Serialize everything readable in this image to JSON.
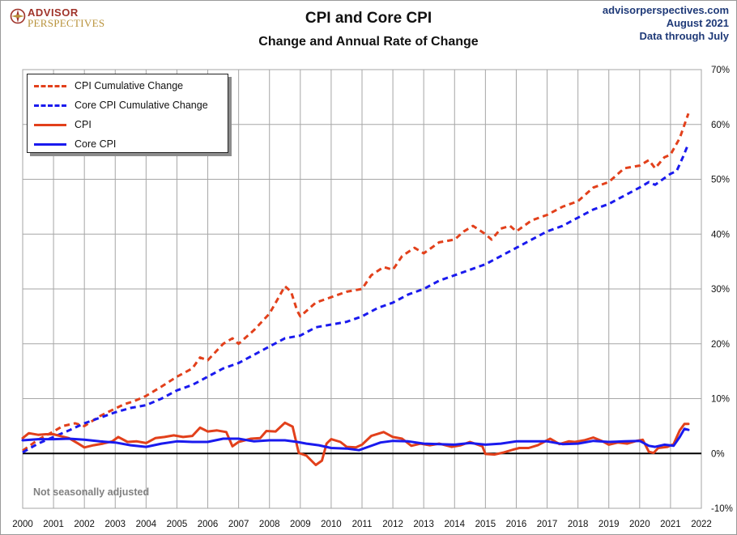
{
  "header": {
    "logo_line1": "ADVISOR",
    "logo_line2": "PERSPECTIVES",
    "title": "CPI and Core CPI",
    "subtitle": "Change and Annual Rate of Change",
    "source_site": "advisorperspectives.com",
    "source_date": "August  2021",
    "source_range": "Data through July"
  },
  "note": "Not seasonally adjusted",
  "colors": {
    "cpi": "#e2401b",
    "core": "#1a1aee",
    "zero_line": "#000000",
    "grid": "#a6a6a6",
    "logo_red": "#a0342b",
    "logo_gold": "#b8923a",
    "source_text": "#1f3a78"
  },
  "chart_data": {
    "type": "line",
    "xlim": [
      2000,
      2022
    ],
    "ylim": [
      -10,
      70
    ],
    "x_ticks": [
      "2000",
      "2001",
      "2002",
      "2003",
      "2004",
      "2005",
      "2006",
      "2007",
      "2008",
      "2009",
      "2010",
      "2011",
      "2012",
      "2013",
      "2014",
      "2015",
      "2016",
      "2017",
      "2018",
      "2019",
      "2020",
      "2021",
      "2022"
    ],
    "y_ticks": [
      "-10%",
      "0%",
      "10%",
      "20%",
      "30%",
      "40%",
      "50%",
      "60%",
      "70%"
    ],
    "grid": true,
    "legend_position": "top-left",
    "series": [
      {
        "name": "CPI Cumulative Change",
        "style": "dashed",
        "color": "#e2401b",
        "points": [
          [
            2000.0,
            0.5
          ],
          [
            2000.5,
            2.5
          ],
          [
            2001.0,
            4.0
          ],
          [
            2001.3,
            5.0
          ],
          [
            2001.7,
            5.5
          ],
          [
            2002.0,
            5.0
          ],
          [
            2002.5,
            6.8
          ],
          [
            2003.0,
            8.2
          ],
          [
            2003.3,
            9.0
          ],
          [
            2003.6,
            9.5
          ],
          [
            2004.0,
            10.5
          ],
          [
            2004.5,
            12.2
          ],
          [
            2005.0,
            14.0
          ],
          [
            2005.5,
            15.5
          ],
          [
            2005.75,
            17.5
          ],
          [
            2006.0,
            17.0
          ],
          [
            2006.5,
            20.0
          ],
          [
            2006.8,
            21.0
          ],
          [
            2007.0,
            20.0
          ],
          [
            2007.5,
            22.5
          ],
          [
            2008.0,
            25.5
          ],
          [
            2008.3,
            28.5
          ],
          [
            2008.5,
            30.5
          ],
          [
            2008.7,
            29.5
          ],
          [
            2008.9,
            26.0
          ],
          [
            2009.0,
            25.0
          ],
          [
            2009.5,
            27.5
          ],
          [
            2010.0,
            28.5
          ],
          [
            2010.5,
            29.5
          ],
          [
            2011.0,
            30.0
          ],
          [
            2011.3,
            32.5
          ],
          [
            2011.7,
            34.0
          ],
          [
            2012.0,
            33.5
          ],
          [
            2012.3,
            36.0
          ],
          [
            2012.7,
            37.5
          ],
          [
            2013.0,
            36.5
          ],
          [
            2013.5,
            38.5
          ],
          [
            2014.0,
            39.0
          ],
          [
            2014.3,
            40.5
          ],
          [
            2014.6,
            41.5
          ],
          [
            2015.0,
            40.0
          ],
          [
            2015.2,
            39.0
          ],
          [
            2015.5,
            41.0
          ],
          [
            2015.8,
            41.5
          ],
          [
            2016.0,
            40.5
          ],
          [
            2016.5,
            42.5
          ],
          [
            2017.0,
            43.5
          ],
          [
            2017.5,
            45.0
          ],
          [
            2018.0,
            46.0
          ],
          [
            2018.5,
            48.5
          ],
          [
            2019.0,
            49.5
          ],
          [
            2019.5,
            52.0
          ],
          [
            2020.0,
            52.5
          ],
          [
            2020.3,
            53.5
          ],
          [
            2020.5,
            52.0
          ],
          [
            2020.8,
            54.0
          ],
          [
            2021.0,
            54.5
          ],
          [
            2021.3,
            57.5
          ],
          [
            2021.58,
            62.0
          ]
        ]
      },
      {
        "name": "Core CPI Cumulative Change",
        "style": "dashed",
        "color": "#1a1aee",
        "points": [
          [
            2000.0,
            0.2
          ],
          [
            2000.5,
            1.8
          ],
          [
            2001.0,
            3.0
          ],
          [
            2001.5,
            4.2
          ],
          [
            2002.0,
            5.5
          ],
          [
            2002.5,
            6.5
          ],
          [
            2003.0,
            7.5
          ],
          [
            2003.5,
            8.3
          ],
          [
            2004.0,
            8.8
          ],
          [
            2004.5,
            10.0
          ],
          [
            2005.0,
            11.5
          ],
          [
            2005.5,
            12.5
          ],
          [
            2006.0,
            14.0
          ],
          [
            2006.5,
            15.5
          ],
          [
            2007.0,
            16.5
          ],
          [
            2007.5,
            18.0
          ],
          [
            2008.0,
            19.5
          ],
          [
            2008.5,
            21.0
          ],
          [
            2009.0,
            21.5
          ],
          [
            2009.5,
            23.0
          ],
          [
            2010.0,
            23.5
          ],
          [
            2010.5,
            24.0
          ],
          [
            2011.0,
            25.0
          ],
          [
            2011.5,
            26.5
          ],
          [
            2012.0,
            27.5
          ],
          [
            2012.5,
            29.0
          ],
          [
            2013.0,
            30.0
          ],
          [
            2013.5,
            31.5
          ],
          [
            2014.0,
            32.5
          ],
          [
            2014.5,
            33.5
          ],
          [
            2015.0,
            34.5
          ],
          [
            2015.5,
            36.0
          ],
          [
            2016.0,
            37.5
          ],
          [
            2016.5,
            39.0
          ],
          [
            2017.0,
            40.5
          ],
          [
            2017.5,
            41.5
          ],
          [
            2018.0,
            43.0
          ],
          [
            2018.5,
            44.5
          ],
          [
            2019.0,
            45.5
          ],
          [
            2019.5,
            47.0
          ],
          [
            2020.0,
            48.5
          ],
          [
            2020.3,
            49.5
          ],
          [
            2020.5,
            49.0
          ],
          [
            2021.0,
            51.0
          ],
          [
            2021.2,
            51.5
          ],
          [
            2021.4,
            54.0
          ],
          [
            2021.58,
            56.5
          ]
        ]
      },
      {
        "name": "CPI",
        "style": "solid",
        "color": "#e2401b",
        "points": [
          [
            2000.0,
            2.8
          ],
          [
            2000.2,
            3.7
          ],
          [
            2000.5,
            3.4
          ],
          [
            2000.75,
            3.5
          ],
          [
            2001.0,
            3.5
          ],
          [
            2001.2,
            3.2
          ],
          [
            2001.5,
            2.8
          ],
          [
            2001.8,
            1.8
          ],
          [
            2002.0,
            1.1
          ],
          [
            2002.3,
            1.5
          ],
          [
            2002.6,
            1.8
          ],
          [
            2002.9,
            2.2
          ],
          [
            2003.1,
            3.0
          ],
          [
            2003.4,
            2.1
          ],
          [
            2003.7,
            2.2
          ],
          [
            2004.0,
            1.9
          ],
          [
            2004.3,
            2.8
          ],
          [
            2004.6,
            3.0
          ],
          [
            2004.9,
            3.3
          ],
          [
            2005.2,
            3.0
          ],
          [
            2005.5,
            3.2
          ],
          [
            2005.75,
            4.7
          ],
          [
            2006.0,
            4.0
          ],
          [
            2006.3,
            4.2
          ],
          [
            2006.6,
            3.9
          ],
          [
            2006.8,
            1.3
          ],
          [
            2007.0,
            2.1
          ],
          [
            2007.4,
            2.7
          ],
          [
            2007.7,
            2.8
          ],
          [
            2007.9,
            4.1
          ],
          [
            2008.2,
            4.0
          ],
          [
            2008.5,
            5.6
          ],
          [
            2008.75,
            4.9
          ],
          [
            2008.95,
            0.1
          ],
          [
            2009.2,
            -0.4
          ],
          [
            2009.5,
            -2.1
          ],
          [
            2009.7,
            -1.3
          ],
          [
            2009.85,
            1.8
          ],
          [
            2010.0,
            2.6
          ],
          [
            2010.3,
            2.1
          ],
          [
            2010.5,
            1.2
          ],
          [
            2010.8,
            1.1
          ],
          [
            2011.0,
            1.6
          ],
          [
            2011.3,
            3.2
          ],
          [
            2011.7,
            3.9
          ],
          [
            2012.0,
            3.0
          ],
          [
            2012.3,
            2.7
          ],
          [
            2012.6,
            1.4
          ],
          [
            2012.9,
            1.8
          ],
          [
            2013.2,
            1.5
          ],
          [
            2013.5,
            1.8
          ],
          [
            2013.9,
            1.2
          ],
          [
            2014.2,
            1.5
          ],
          [
            2014.5,
            2.1
          ],
          [
            2014.9,
            1.3
          ],
          [
            2015.0,
            -0.1
          ],
          [
            2015.3,
            -0.2
          ],
          [
            2015.6,
            0.2
          ],
          [
            2015.9,
            0.7
          ],
          [
            2016.1,
            1.0
          ],
          [
            2016.4,
            1.0
          ],
          [
            2016.7,
            1.5
          ],
          [
            2016.9,
            2.1
          ],
          [
            2017.1,
            2.7
          ],
          [
            2017.4,
            1.7
          ],
          [
            2017.7,
            2.2
          ],
          [
            2017.9,
            2.1
          ],
          [
            2018.2,
            2.4
          ],
          [
            2018.5,
            2.9
          ],
          [
            2018.8,
            2.2
          ],
          [
            2019.0,
            1.6
          ],
          [
            2019.3,
            2.0
          ],
          [
            2019.6,
            1.8
          ],
          [
            2019.9,
            2.3
          ],
          [
            2020.1,
            2.5
          ],
          [
            2020.3,
            0.3
          ],
          [
            2020.45,
            0.1
          ],
          [
            2020.6,
            1.0
          ],
          [
            2020.9,
            1.2
          ],
          [
            2021.1,
            1.7
          ],
          [
            2021.3,
            4.2
          ],
          [
            2021.45,
            5.4
          ],
          [
            2021.58,
            5.4
          ]
        ]
      },
      {
        "name": "Core CPI",
        "style": "solid",
        "color": "#1a1aee",
        "points": [
          [
            2000.0,
            2.4
          ],
          [
            2000.5,
            2.6
          ],
          [
            2001.0,
            2.6
          ],
          [
            2001.5,
            2.7
          ],
          [
            2002.0,
            2.5
          ],
          [
            2002.5,
            2.2
          ],
          [
            2003.0,
            2.0
          ],
          [
            2003.5,
            1.5
          ],
          [
            2004.0,
            1.2
          ],
          [
            2004.5,
            1.8
          ],
          [
            2005.0,
            2.2
          ],
          [
            2005.5,
            2.1
          ],
          [
            2006.0,
            2.1
          ],
          [
            2006.5,
            2.7
          ],
          [
            2007.0,
            2.7
          ],
          [
            2007.5,
            2.2
          ],
          [
            2008.0,
            2.4
          ],
          [
            2008.5,
            2.4
          ],
          [
            2008.9,
            2.1
          ],
          [
            2009.2,
            1.8
          ],
          [
            2009.6,
            1.5
          ],
          [
            2010.0,
            1.0
          ],
          [
            2010.5,
            0.9
          ],
          [
            2010.9,
            0.6
          ],
          [
            2011.2,
            1.2
          ],
          [
            2011.6,
            2.0
          ],
          [
            2012.0,
            2.3
          ],
          [
            2012.5,
            2.2
          ],
          [
            2013.0,
            1.8
          ],
          [
            2013.5,
            1.7
          ],
          [
            2014.0,
            1.6
          ],
          [
            2014.5,
            1.9
          ],
          [
            2015.0,
            1.6
          ],
          [
            2015.5,
            1.8
          ],
          [
            2016.0,
            2.2
          ],
          [
            2016.5,
            2.2
          ],
          [
            2017.0,
            2.2
          ],
          [
            2017.5,
            1.7
          ],
          [
            2018.0,
            1.8
          ],
          [
            2018.5,
            2.3
          ],
          [
            2019.0,
            2.1
          ],
          [
            2019.5,
            2.2
          ],
          [
            2020.0,
            2.3
          ],
          [
            2020.3,
            1.4
          ],
          [
            2020.5,
            1.2
          ],
          [
            2020.8,
            1.6
          ],
          [
            2021.1,
            1.4
          ],
          [
            2021.3,
            3.0
          ],
          [
            2021.45,
            4.5
          ],
          [
            2021.58,
            4.3
          ]
        ]
      }
    ]
  }
}
